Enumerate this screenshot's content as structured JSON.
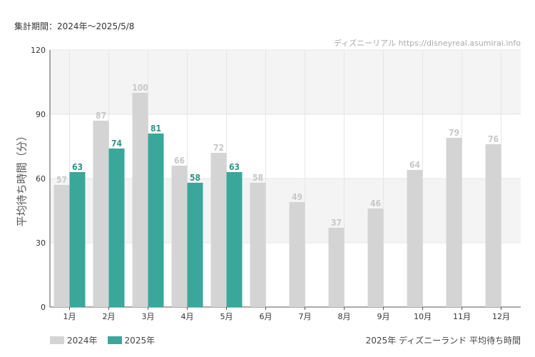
{
  "header": {
    "period": "集計期間：2024年〜2025/5/8",
    "watermark": "ディズニーリアル https://disneyreal.asumirai.info"
  },
  "footer": {
    "caption": "2025年 ディズニーランド 平均待ち時間"
  },
  "colors": {
    "series_2024": "#d4d4d4",
    "series_2025": "#3ba79b",
    "label_2024": "#c8c8c8",
    "label_2025": "#2f9488",
    "band": "#f4f4f4",
    "grid": "#e6e6e6"
  },
  "chart_data": {
    "type": "bar",
    "ylabel": "平均待ち時間（分）",
    "ylim": [
      0,
      120
    ],
    "yticks": [
      0,
      30,
      60,
      90,
      120
    ],
    "grid": true,
    "legend_position": "bottom-left",
    "categories": [
      "1月",
      "2月",
      "3月",
      "4月",
      "5月",
      "6月",
      "7月",
      "8月",
      "9月",
      "10月",
      "11月",
      "12月"
    ],
    "series": [
      {
        "name": "2024年",
        "values": [
          57,
          87,
          100,
          66,
          72,
          58,
          49,
          37,
          46,
          64,
          79,
          76
        ]
      },
      {
        "name": "2025年",
        "values": [
          63,
          74,
          81,
          58,
          63,
          null,
          null,
          null,
          null,
          null,
          null,
          null
        ]
      }
    ]
  }
}
